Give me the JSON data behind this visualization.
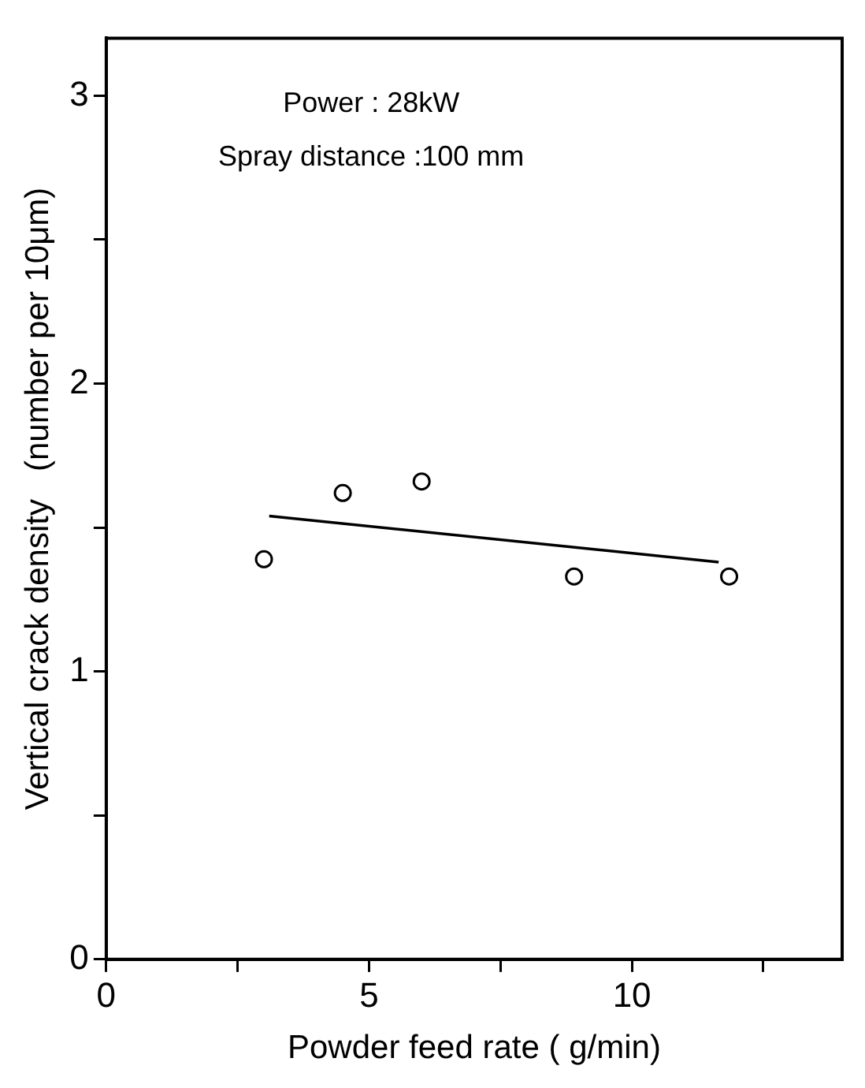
{
  "chart_data": {
    "type": "scatter",
    "xlabel": "Powder feed rate ( g/min)",
    "ylabel": "Vertical crack density   (number per 10μm)",
    "annotations": [
      "Power : 28kW",
      "Spray distance :100 mm"
    ],
    "xlim": [
      0,
      14
    ],
    "xticks": [
      0,
      {
        "value": 2.5,
        "label": null
      },
      5,
      {
        "value": 7.5,
        "label": null
      },
      10,
      {
        "value": 12.5,
        "label": null
      }
    ],
    "ylim": [
      0,
      3.2
    ],
    "yticks": [
      0,
      {
        "value": 0.5,
        "label": null
      },
      1,
      {
        "value": 1.5,
        "label": null
      },
      2,
      {
        "value": 2.5,
        "label": null
      },
      3
    ],
    "grid": false,
    "legend": false,
    "series": [
      {
        "type": "scatter",
        "color": "#000000",
        "marker": "circle",
        "x": [
          3.0,
          4.5,
          6.0,
          8.9,
          11.85
        ],
        "values": [
          1.39,
          1.62,
          1.66,
          1.33,
          1.33
        ]
      },
      {
        "type": "line",
        "color": "#000000",
        "marker": "none",
        "line_style": "solid",
        "x": [
          3.1,
          11.65
        ],
        "values": [
          1.54,
          1.38
        ]
      }
    ]
  }
}
